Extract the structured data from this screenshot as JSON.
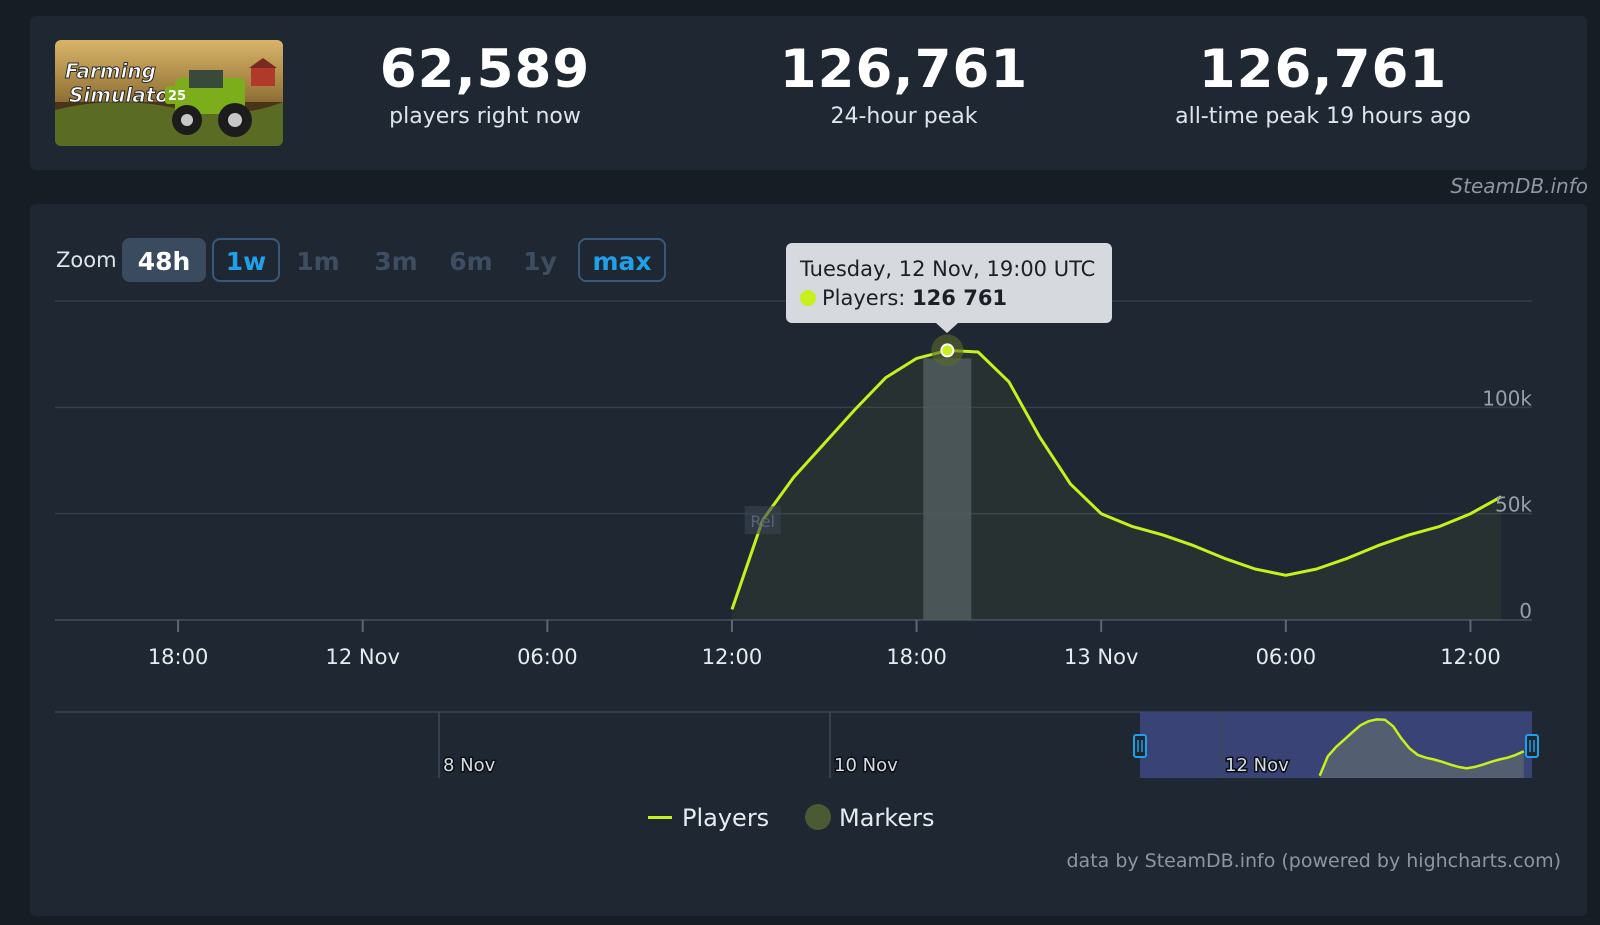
{
  "game": {
    "cover_title_line1": "Farming",
    "cover_title_line2": "Simulator",
    "cover_badge": "25"
  },
  "stats": [
    {
      "value": "62,589",
      "label": "players right now"
    },
    {
      "value": "126,761",
      "label": "24-hour peak"
    },
    {
      "value": "126,761",
      "label": "all-time peak 19 hours ago"
    }
  ],
  "credit_top": "SteamDB.info",
  "zoom": {
    "label": "Zoom",
    "buttons": [
      "48h",
      "1w",
      "1m",
      "3m",
      "6m",
      "1y",
      "max"
    ],
    "selected": "48h"
  },
  "tooltip": {
    "date": "Tuesday, 12 Nov, 19:00 UTC",
    "series_label": "Players:",
    "value": "126 761"
  },
  "legend": {
    "players": "Players",
    "markers": "Markers"
  },
  "credit_bottom": "data by SteamDB.info (powered by highcharts.com)",
  "marker_label": "Rel",
  "colors": {
    "line": "#c8f01c",
    "background": "#171d25",
    "panel": "#1f2733",
    "navigator_selection": "#3c4479",
    "accent_blue": "#1fa0e8"
  },
  "chart_data": {
    "type": "line",
    "series": [
      {
        "name": "Players",
        "x": [
          "2024-11-12 12:00",
          "2024-11-12 13:00",
          "2024-11-12 14:00",
          "2024-11-12 15:00",
          "2024-11-12 16:00",
          "2024-11-12 17:00",
          "2024-11-12 18:00",
          "2024-11-12 19:00",
          "2024-11-12 20:00",
          "2024-11-12 21:00",
          "2024-11-12 22:00",
          "2024-11-12 23:00",
          "2024-11-13 00:00",
          "2024-11-13 01:00",
          "2024-11-13 02:00",
          "2024-11-13 03:00",
          "2024-11-13 04:00",
          "2024-11-13 05:00",
          "2024-11-13 06:00",
          "2024-11-13 07:00",
          "2024-11-13 08:00",
          "2024-11-13 09:00",
          "2024-11-13 10:00",
          "2024-11-13 11:00",
          "2024-11-13 12:00",
          "2024-11-13 13:00"
        ],
        "y": [
          5000,
          47000,
          67000,
          83000,
          99000,
          114000,
          123000,
          126761,
          126000,
          112000,
          86000,
          64000,
          50000,
          44000,
          40000,
          35000,
          29000,
          24000,
          21000,
          24000,
          29000,
          35000,
          40000,
          44000,
          50000,
          58000
        ]
      }
    ],
    "xlabel": "",
    "ylabel": "",
    "x_ticks": [
      "18:00",
      "12 Nov",
      "06:00",
      "12:00",
      "18:00",
      "13 Nov",
      "06:00",
      "12:00"
    ],
    "y_ticks": [
      "0",
      "50k",
      "100k"
    ],
    "ylim": [
      0,
      150000
    ],
    "xlim": [
      "2024-11-11 14:00",
      "2024-11-13 14:00"
    ],
    "grid": true,
    "legend": "bottom-center",
    "highlighted_point": {
      "x": "2024-11-12 19:00",
      "y": 126761
    },
    "markers": [
      {
        "x": "2024-11-12 13:00",
        "label": "Rel"
      }
    ],
    "navigator_ticks": [
      "8 Nov",
      "10 Nov",
      "12 Nov"
    ]
  }
}
